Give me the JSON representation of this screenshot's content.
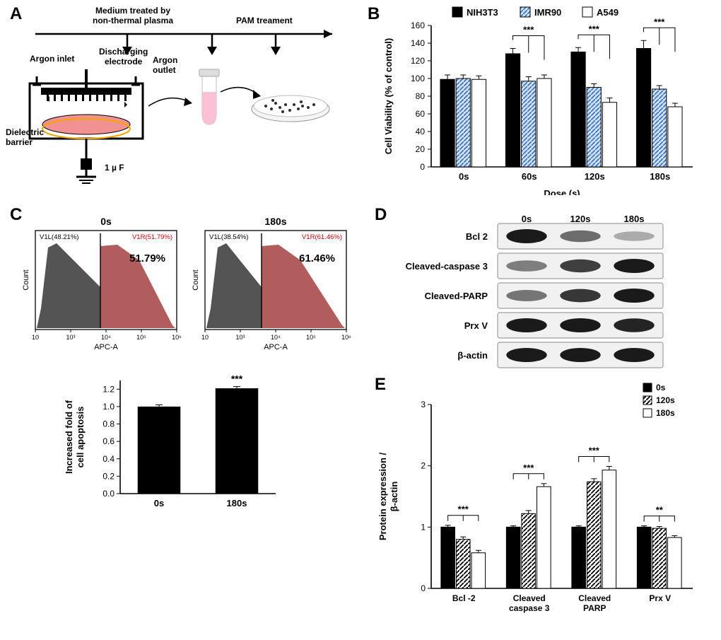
{
  "labels": {
    "A": "A",
    "B": "B",
    "C": "C",
    "D": "D",
    "E": "E"
  },
  "A": {
    "step1": "Medium treated by\nnon-thermal plasma",
    "step2": "PAM treament",
    "argon_in": "Argon inlet",
    "argon_out": "Argon\noutlet",
    "disch": "Discharging\nelectrode",
    "dielectric": "Dielectric\nbarrier",
    "cap": "1 µ F",
    "colors": {
      "medium": "#f29191",
      "dish_line": "#f2a500",
      "tube_liquid": "#fbbfd6",
      "cells": "#2e2e2e",
      "plate": "#f5f5f5"
    }
  },
  "B": {
    "type": "bar",
    "xlabel": "Dose (s)",
    "ylabel": "Cell Viability (% of control)",
    "categories": [
      "0s",
      "60s",
      "120s",
      "180s"
    ],
    "series": [
      {
        "name": "NIH3T3",
        "fill": "#000000",
        "pattern": "solid",
        "values": [
          99,
          128,
          130,
          134
        ],
        "err": [
          5,
          6,
          5,
          9
        ]
      },
      {
        "name": "IMR90",
        "fill": "#cfe4f5",
        "pattern": "diag",
        "values": [
          100,
          97,
          90,
          88
        ],
        "err": [
          4,
          5,
          4,
          4
        ]
      },
      {
        "name": "A549",
        "fill": "#ffffff",
        "pattern": "open",
        "values": [
          99,
          100,
          73,
          68
        ],
        "err": [
          4,
          4,
          5,
          4
        ]
      }
    ],
    "sig": "***",
    "ylim": [
      0,
      160
    ],
    "ytick_step": 20,
    "bar_width": 0.78,
    "group_gap": 0.6,
    "grid_color": "#e0e0e0",
    "background_color": "#ffffff",
    "label_fontsize": 12,
    "legend_fontsize": 12
  },
  "C": {
    "hist": {
      "titles": [
        "0s",
        "180s"
      ],
      "left_gate": {
        "name": "V1L",
        "pct": "48.21"
      },
      "right_gate": {
        "name": "V1R",
        "pct0": "51.79",
        "pct180": "61.46",
        "left180": "38.54"
      },
      "xaxis": "APC-A",
      "yaxis": "Count",
      "xticks": [
        "10",
        "10³",
        "10⁴",
        "10⁵",
        "10⁶"
      ],
      "big0": "51.79%",
      "big180": "61.46%",
      "colors": {
        "live": "#4b4b4b",
        "dead": "#a84b4b",
        "gate": "#000000",
        "v1r_text": "#cc0000"
      }
    },
    "bar": {
      "type": "bar",
      "ylabel": "Increased fold of\ncell apoptosis",
      "categories": [
        "0s",
        "180s"
      ],
      "values": [
        1.0,
        1.21
      ],
      "err": [
        0.02,
        0.02
      ],
      "sig": "***",
      "ylim": [
        0,
        1.3
      ],
      "yticks": [
        "0.0",
        "0.2",
        "0.4",
        "0.6",
        "0.8",
        "1.0",
        "1.2"
      ],
      "fill": "#000000"
    }
  },
  "D": {
    "header": [
      "0s",
      "120s",
      "180s"
    ],
    "rows": [
      "Bcl 2",
      "Cleaved-caspase 3",
      "Cleaved-PARP",
      "Prx V",
      "β-actin"
    ],
    "intensity": [
      [
        1.0,
        0.55,
        0.2
      ],
      [
        0.45,
        0.8,
        1.0
      ],
      [
        0.5,
        0.85,
        1.0
      ],
      [
        1.0,
        1.0,
        0.95
      ],
      [
        1.0,
        1.0,
        1.0
      ]
    ],
    "band_color": "#1a1a1a",
    "lane_bg": "#f1f1f1",
    "border": "#9f9f9f"
  },
  "E": {
    "type": "bar",
    "ylabel": "Protein expression /\nβ-actin",
    "categories": [
      "Bcl -2",
      "Cleaved\ncaspase 3",
      "Cleaved\nPARP",
      "Prx V"
    ],
    "series": [
      {
        "name": "0s",
        "fill": "#000000",
        "pattern": "solid",
        "values": [
          1.0,
          1.0,
          1.0,
          1.0
        ],
        "err": [
          0.03,
          0.02,
          0.02,
          0.02
        ]
      },
      {
        "name": "120s",
        "fill": "#ffffff",
        "pattern": "diag",
        "values": [
          0.8,
          1.22,
          1.74,
          0.98
        ],
        "err": [
          0.04,
          0.05,
          0.05,
          0.03
        ]
      },
      {
        "name": "180s",
        "fill": "#ffffff",
        "pattern": "open",
        "values": [
          0.58,
          1.66,
          1.93,
          0.83
        ],
        "err": [
          0.04,
          0.05,
          0.06,
          0.03
        ]
      }
    ],
    "sig": [
      "***",
      "***",
      "***",
      "**"
    ],
    "ylim": [
      0,
      3
    ],
    "yticks": [
      "0",
      "1",
      "2",
      "3"
    ],
    "label_fontsize": 12,
    "legend_fontsize": 12
  }
}
